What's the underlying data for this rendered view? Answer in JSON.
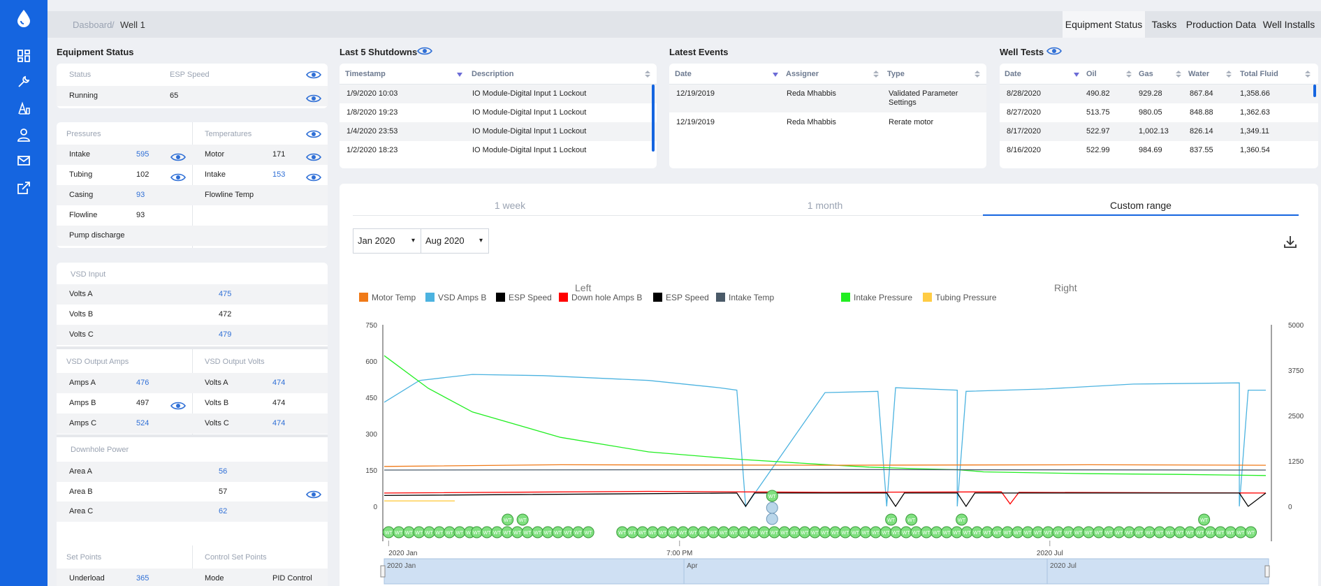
{
  "breadcrumb": {
    "home": "Dasboard",
    "sep": "/",
    "current": "Well 1"
  },
  "top_tabs": [
    {
      "label": "Equipment Status",
      "active": true
    },
    {
      "label": "Tasks"
    },
    {
      "label": "Production Data"
    },
    {
      "label": "Well Installs"
    }
  ],
  "equipment": {
    "title": "Equipment Status",
    "status_header": "Status",
    "speed_header": "ESP Speed",
    "status_value": "Running",
    "speed_value": "65",
    "pressures_header": "Pressures",
    "temperatures_header": "Temperatures",
    "pressures": [
      {
        "label": "Intake",
        "value": "595"
      },
      {
        "label": "Tubing",
        "value": "102"
      },
      {
        "label": "Casing",
        "value": "93"
      },
      {
        "label": "Flowline",
        "value": "93"
      },
      {
        "label": "Pump discharge",
        "value": ""
      }
    ],
    "temperatures": [
      {
        "label": "Motor",
        "value": "171"
      },
      {
        "label": "Intake",
        "value": "153"
      },
      {
        "label": "Flowline Temp",
        "value": ""
      }
    ],
    "vsd_input_header": "VSD Input",
    "vsd_input": [
      {
        "label": "Volts A",
        "value": "475"
      },
      {
        "label": "Volts B",
        "value": "472"
      },
      {
        "label": "Volts C",
        "value": "479"
      }
    ],
    "vsd_amps_header": "VSD Output Amps",
    "vsd_volts_header": "VSD Output Volts",
    "vsd_amps": [
      {
        "label": "Amps A",
        "value": "476"
      },
      {
        "label": "Amps B",
        "value": "497"
      },
      {
        "label": "Amps C",
        "value": "524"
      }
    ],
    "vsd_volts": [
      {
        "label": "Volts A",
        "value": "474"
      },
      {
        "label": "Volts B",
        "value": "474"
      },
      {
        "label": "Volts C",
        "value": "474"
      }
    ],
    "downhole_header": "Downhole Power",
    "downhole": [
      {
        "label": "Area A",
        "value": "56"
      },
      {
        "label": "Area B",
        "value": "57"
      },
      {
        "label": "Area C",
        "value": "62"
      }
    ],
    "setpoints_header": "Set Points",
    "control_header": "Control Set Points",
    "underload_label": "Underload",
    "underload_value": "365",
    "mode_label": "Mode",
    "mode_value": "PID Control"
  },
  "shutdowns": {
    "title": "Last 5 Shutdowns",
    "columns": [
      "Timestamp",
      "Description"
    ],
    "rows": [
      [
        "1/9/2020 10:03",
        "IO Module-Digital Input 1 Lockout"
      ],
      [
        "1/8/2020 19:23",
        "IO Module-Digital Input 1 Lockout"
      ],
      [
        "1/4/2020 23:53",
        "IO Module-Digital Input 1 Lockout"
      ],
      [
        "1/2/2020 18:23",
        "IO Module-Digital Input 1 Lockout"
      ]
    ]
  },
  "events": {
    "title": "Latest Events",
    "columns": [
      "Date",
      "Assigner",
      "Type"
    ],
    "rows": [
      [
        "12/19/2019",
        "Reda Mhabbis",
        "Validated Parameter",
        "Settings"
      ],
      [
        "12/19/2019",
        "Reda Mhabbis",
        "Rerate motor",
        ""
      ]
    ]
  },
  "well_tests": {
    "title": "Well Tests",
    "columns": [
      "Date",
      "Oil",
      "Gas",
      "Water",
      "Total Fluid"
    ],
    "rows": [
      [
        "8/28/2020",
        "490.82",
        "929.28",
        "867.84",
        "1,358.66"
      ],
      [
        "8/27/2020",
        "513.75",
        "980.05",
        "848.88",
        "1,362.63"
      ],
      [
        "8/17/2020",
        "522.97",
        "1,002.13",
        "826.14",
        "1,349.11"
      ],
      [
        "8/16/2020",
        "522.99",
        "984.69",
        "837.55",
        "1,360.54"
      ]
    ]
  },
  "chart_panel": {
    "tabs": [
      "1 week",
      "1 month",
      "Custom range"
    ],
    "active_tab": "Custom range",
    "start_select": "Jan 2020",
    "end_select": "Aug 2020",
    "left_title": "Left",
    "right_title": "Right"
  },
  "chart_data": {
    "type": "line",
    "legend": [
      {
        "name": "Motor Temp",
        "color": "#f07a18"
      },
      {
        "name": "VSD Amps B",
        "color": "#4cb3e0"
      },
      {
        "name": "ESP Speed",
        "color": "#000000"
      },
      {
        "name": "Down hole Amps B",
        "color": "#ff0000"
      },
      {
        "name": "ESP Speed",
        "color": "#000000"
      },
      {
        "name": "Intake Temp",
        "color": "#4a5a68"
      },
      {
        "name": "Intake Pressure",
        "color": "#22ee22"
      },
      {
        "name": "Tubing Pressure",
        "color": "#ffcc44"
      }
    ],
    "left_axis": {
      "ticks": [
        "750",
        "600",
        "450",
        "300",
        "150",
        "0"
      ],
      "ylim": [
        0,
        750
      ]
    },
    "right_axis": {
      "ticks": [
        "5000",
        "3750",
        "2500",
        "1250",
        "0"
      ],
      "ylim": [
        0,
        5000
      ]
    },
    "x_ticks": [
      "2020 Jan",
      "7:00 PM",
      "2020 Jul"
    ],
    "navigator_ticks": [
      "2020 Jan",
      "Apr",
      "2020 Jul"
    ],
    "event_marker_label": "WT",
    "series": [
      {
        "name": "VSD Amps B",
        "axis": "left",
        "color": "#4cb3e0",
        "x": [
          0,
          0.04,
          0.1,
          0.18,
          0.3,
          0.38,
          0.4,
          0.41,
          0.5,
          0.56,
          0.57,
          0.58,
          0.65,
          0.65,
          0.66,
          0.75,
          0.85,
          0.97,
          0.97,
          0.98,
          1.0
        ],
        "y": [
          430,
          520,
          545,
          540,
          520,
          490,
          480,
          0,
          470,
          475,
          0,
          490,
          480,
          0,
          475,
          485,
          505,
          510,
          0,
          480,
          480
        ]
      },
      {
        "name": "Intake Pressure",
        "axis": "right",
        "color": "#22ee22",
        "x": [
          0,
          0.05,
          0.1,
          0.2,
          0.3,
          0.4,
          0.5,
          0.55,
          0.6,
          0.65,
          0.68,
          0.8,
          0.9,
          1.0
        ],
        "y": [
          4150,
          3250,
          2600,
          1900,
          1500,
          1300,
          1150,
          1080,
          1040,
          1010,
          950,
          900,
          880,
          850
        ]
      },
      {
        "name": "Motor Temp",
        "axis": "left",
        "color": "#f07a18",
        "x": [
          0,
          0.2,
          0.5,
          0.8,
          1.0
        ],
        "y": [
          165,
          172,
          170,
          172,
          170
        ]
      },
      {
        "name": "Intake Temp",
        "axis": "left",
        "color": "#4a5a68",
        "x": [
          0,
          0.5,
          1.0
        ],
        "y": [
          150,
          152,
          150
        ]
      },
      {
        "name": "Down hole Amps B",
        "axis": "left",
        "color": "#ff0000",
        "x": [
          0,
          0.3,
          0.5,
          0.7,
          0.71,
          0.72,
          1.0
        ],
        "y": [
          55,
          62,
          58,
          60,
          10,
          58,
          55
        ]
      },
      {
        "name": "ESP Speed",
        "axis": "left",
        "color": "#000000",
        "x": [
          0,
          0.4,
          0.41,
          0.42,
          0.57,
          0.58,
          0.59,
          0.65,
          0.66,
          0.67,
          0.97,
          0.98,
          1.0
        ],
        "y": [
          45,
          55,
          0,
          55,
          55,
          0,
          55,
          55,
          0,
          55,
          55,
          0,
          55
        ]
      },
      {
        "name": "Tubing Pressure",
        "axis": "right",
        "color": "#ffcc44",
        "x": [
          0,
          0.08
        ],
        "y": [
          150,
          150
        ]
      }
    ]
  }
}
